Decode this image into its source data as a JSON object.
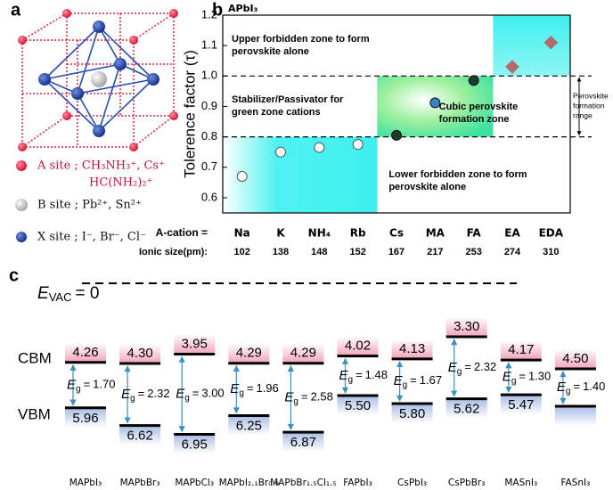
{
  "panel_labels": [
    "a",
    "b",
    "c"
  ],
  "panel_a": {
    "legend": [
      {
        "label": "A site ; CH₃NH₃⁺, Cs⁺",
        "continuation": "HC(NH₂)₂⁺",
        "color": "#e0203c"
      },
      {
        "label": "B site ;  Pb²⁺,  Sn²⁺",
        "color": "#d9d9d9"
      },
      {
        "label": "X site ;  I⁻, Br⁻, Cl⁻",
        "color": "#1f3f9a"
      }
    ]
  },
  "chart_data": [
    {
      "type": "scatter",
      "title": "APbI₃",
      "y_label": "Tolerence factor (τ)",
      "categories": [
        "Na",
        "K",
        "NH₄",
        "Rb",
        "Cs",
        "MA",
        "FA",
        "EA",
        "EDA"
      ],
      "values": [
        0.67,
        0.75,
        0.765,
        0.775,
        0.805,
        0.912,
        0.985,
        1.03,
        1.11
      ],
      "marker_shapes": [
        "circle",
        "circle",
        "circle",
        "circle",
        "circle",
        "circle",
        "circle",
        "diamond",
        "diamond"
      ],
      "marker_colors": [
        "#ffffff",
        "#ffffff",
        "#ffffff",
        "#ffffff",
        "#1f3a2e",
        "#3b7fc4",
        "#1f3a2e",
        "#b26a6a",
        "#b26a6a"
      ],
      "category_row_label": "A-cation =",
      "ionic_size_label": "Ionic size(pm):",
      "ionic_sizes": [
        102,
        138,
        148,
        152,
        167,
        217,
        253,
        274,
        310
      ],
      "ylim": [
        0.55,
        1.2
      ],
      "yticks": [
        0.6,
        0.7,
        0.8,
        0.9,
        {
          "value": 1,
          "label": "1.0"
        },
        1.1,
        1.2
      ],
      "reference_lines": [
        0.8,
        1
      ],
      "range_label": [
        "Perovskite",
        "formation",
        "range"
      ],
      "annotations": [
        [
          "Upper forbidden zone to form",
          "perovskite alone"
        ],
        [
          "Stabilizer/Passivator for",
          "green zone cations"
        ],
        [
          "Cubic perovskite",
          "formation zone"
        ],
        [
          "Lower forbidden zone to form",
          "perovskite alone"
        ]
      ]
    },
    {
      "type": "levels",
      "categories": [
        "MAPbI₃",
        "MAPbBr₃",
        "MAPbCl₃",
        "MAPbI₂.₁Br₀.₉",
        "MAPbBr₁.₅Cl₁.₅",
        "FAPbI₃",
        "CsPbI₃",
        "CsPbBr₃",
        "MASnI₃",
        "FASnI₃"
      ],
      "cbm": [
        4.26,
        4.3,
        3.95,
        4.29,
        4.29,
        4.02,
        4.13,
        3.3,
        4.17,
        4.5
      ],
      "cbm_labels": [
        "4.26",
        "4.30",
        "3.95",
        "4.29",
        "4.29",
        "4.02",
        "4.13",
        "3.30",
        "4.17",
        "4.50"
      ],
      "vbm": [
        5.96,
        6.62,
        6.95,
        6.25,
        6.87,
        5.5,
        5.8,
        5.62,
        5.47,
        5.9
      ],
      "vbm_labels": [
        "5.96",
        "6.62",
        "6.95",
        "6.25",
        "6.87",
        "5.50",
        "5.80",
        "5.62",
        "5.47",
        null
      ],
      "eg": [
        1.7,
        2.32,
        3,
        1.96,
        2.58,
        1.48,
        1.67,
        2.32,
        1.3,
        1.4
      ],
      "eg_labels": [
        "1.70",
        "2.32",
        "3.00",
        "1.96",
        "2.58",
        "1.48",
        "1.67",
        "2.32",
        "1.30",
        "1.40"
      ],
      "eg_symbol": {
        "symbol": "E",
        "subscript": "g",
        "equals": "="
      },
      "vacuum": {
        "symbol": "E",
        "subscript": "VAC",
        "text": "= 0"
      },
      "level_names": {
        "cbm": "CBM",
        "vbm": "VBM"
      },
      "cbm_color": "#f2a3b9",
      "vbm_color": "#a8bce3",
      "arrow_color": "#3a8fc0"
    }
  ]
}
